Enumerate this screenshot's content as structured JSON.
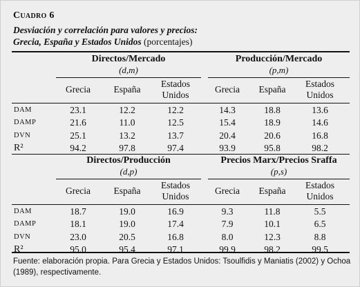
{
  "heading": {
    "cuadro": "Cuadro 6",
    "title_line1": "Desviación y correlación para valores y precios:",
    "title_line2": "Grecia, España y Estados Unidos",
    "title_units": "(porcentajes)"
  },
  "columns": [
    "Grecia",
    "España",
    "Estados Unidos"
  ],
  "panels": [
    {
      "groups": [
        {
          "title": "Directos/Mercado",
          "sub": "(d,m)"
        },
        {
          "title": "Producción/Mercado",
          "sub": "(p,m)"
        }
      ],
      "rows": [
        {
          "label": "DAM",
          "values": [
            "23.1",
            "12.2",
            "12.2",
            "14.3",
            "18.8",
            "13.6"
          ]
        },
        {
          "label": "DAMP",
          "values": [
            "21.6",
            "11.0",
            "12.5",
            "15.4",
            "18.9",
            "14.6"
          ]
        },
        {
          "label": "DVN",
          "values": [
            "25.1",
            "13.2",
            "13.7",
            "20.4",
            "20.6",
            "16.8"
          ]
        },
        {
          "label": "R²",
          "values": [
            "94.2",
            "97.8",
            "97.4",
            "93.9",
            "95.8",
            "98.2"
          ]
        }
      ]
    },
    {
      "groups": [
        {
          "title": "Directos/Producción",
          "sub": "(d,p)"
        },
        {
          "title": "Precios Marx/Precios Sraffa",
          "sub": "(p,s)"
        }
      ],
      "rows": [
        {
          "label": "DAM",
          "values": [
            "18.7",
            "19.0",
            "16.9",
            "9.3",
            "11.8",
            "5.5"
          ]
        },
        {
          "label": "DAMP",
          "values": [
            "18.1",
            "19.0",
            "17.4",
            "7.9",
            "10.1",
            "6.5"
          ]
        },
        {
          "label": "DVN",
          "values": [
            "23.0",
            "20.5",
            "16.8",
            "8.0",
            "12.3",
            "8.8"
          ]
        },
        {
          "label": "R²",
          "values": [
            "95.0",
            "95.4",
            "97.1",
            "99.9",
            "98.2",
            "99.5"
          ]
        }
      ]
    }
  ],
  "footnote": "Fuente: elaboración propia. Para Grecia y Estados Unidos: Tsoulfidis y Maniatis (2002) y Ochoa (1989), respectivamente."
}
